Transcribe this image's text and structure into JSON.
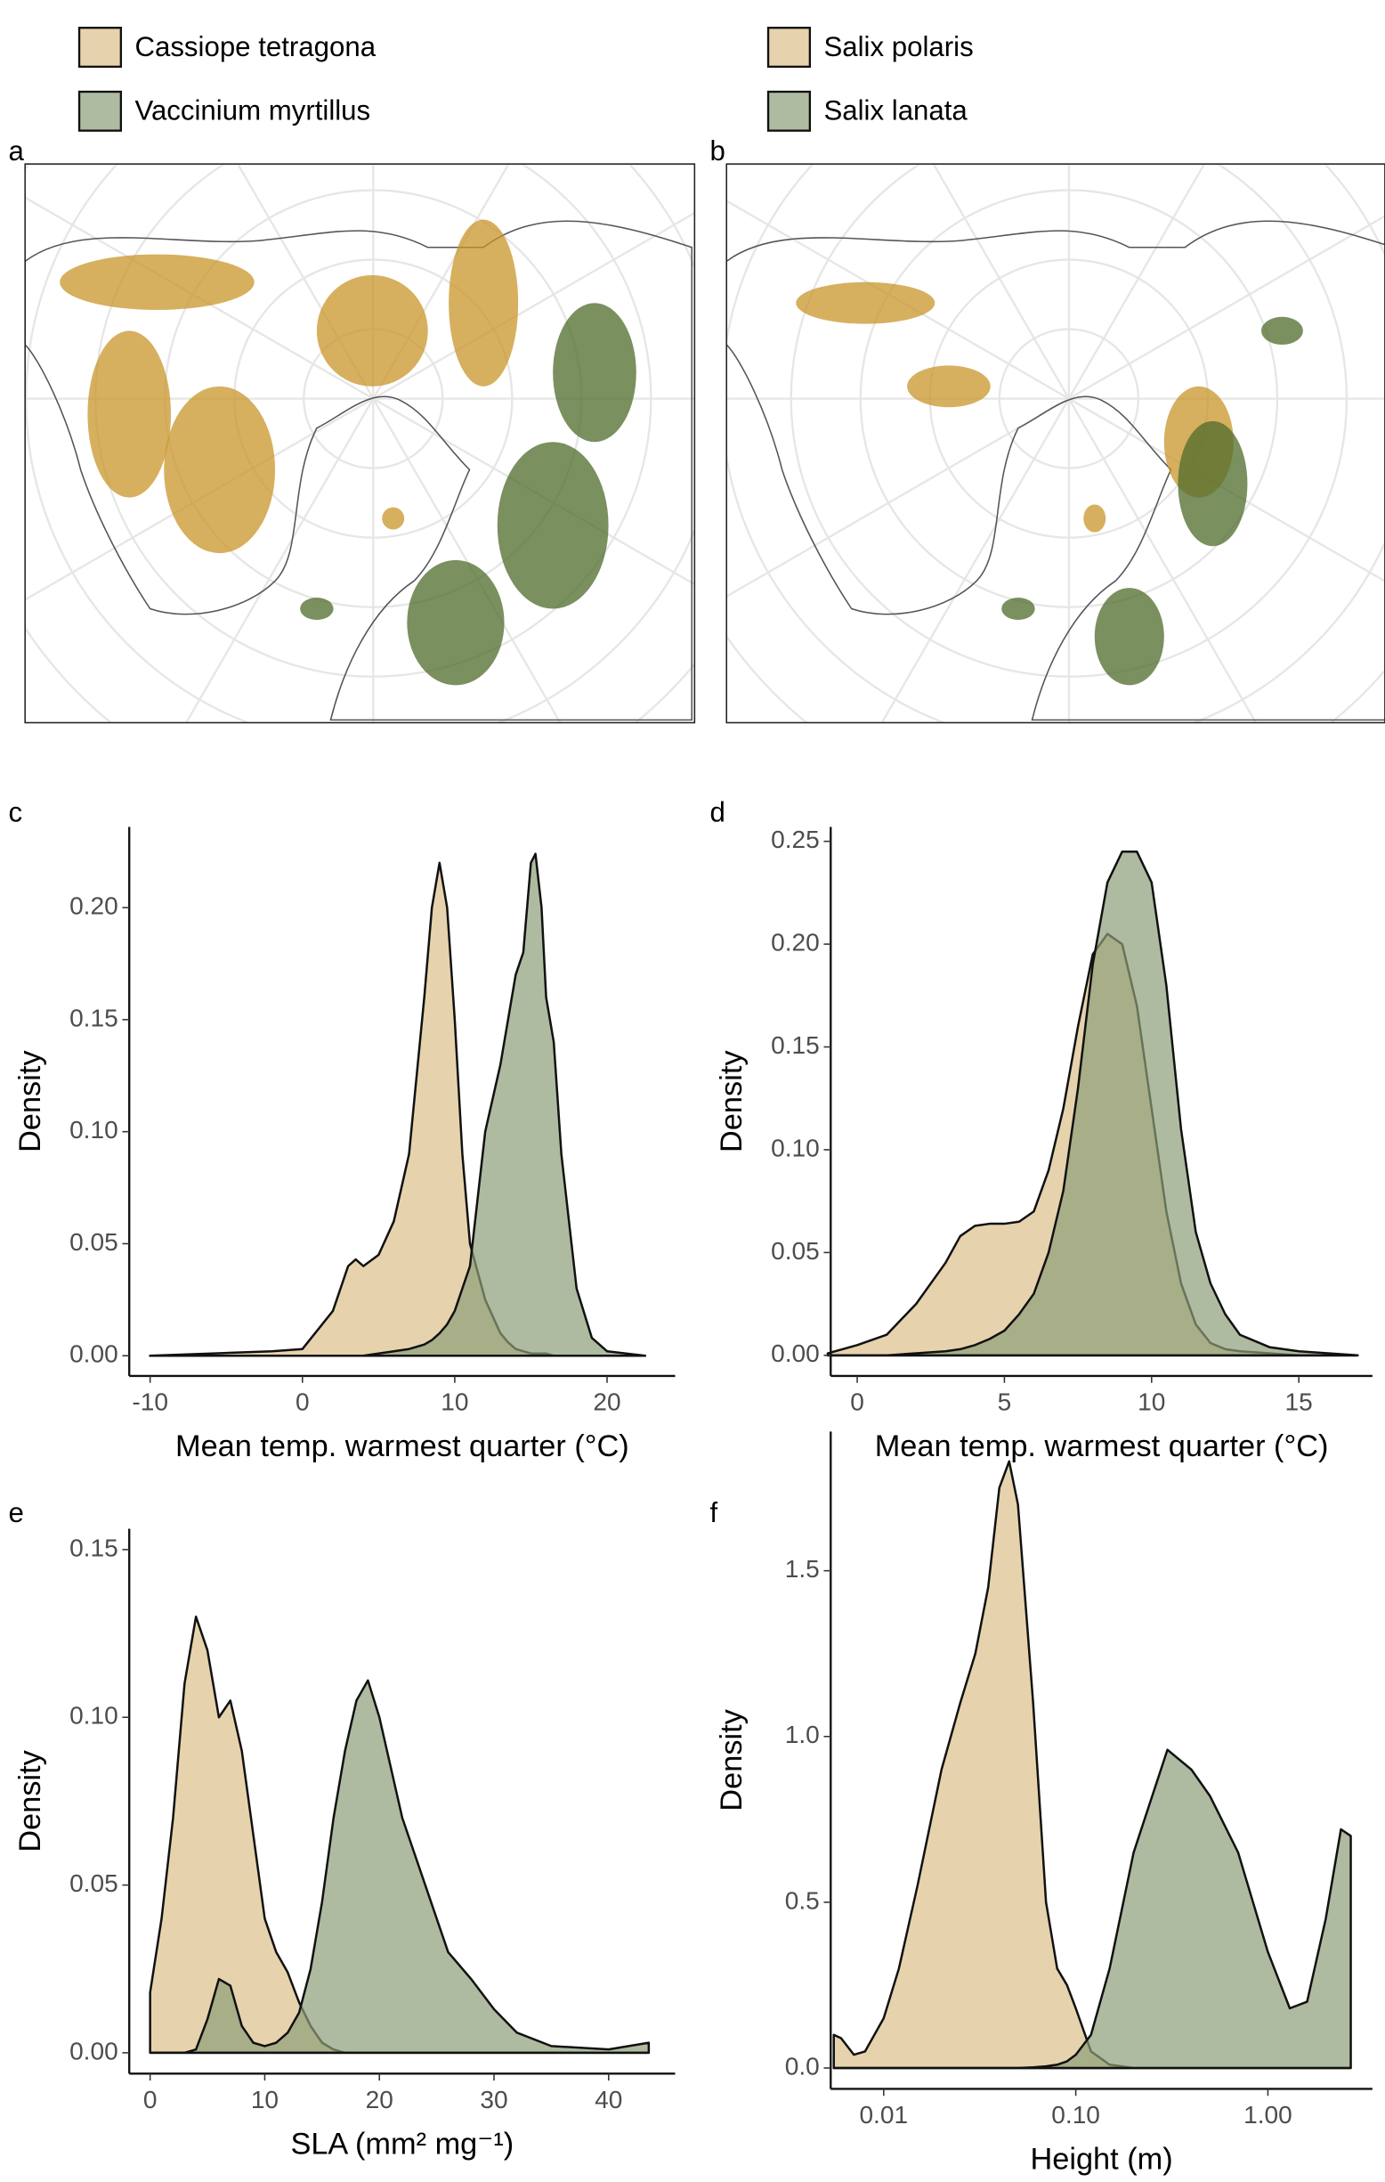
{
  "chart_data": [
    {
      "type": "map",
      "label": "a"
    },
    {
      "type": "map",
      "label": "b"
    },
    {
      "type": "density",
      "label": "c",
      "x_label": "Mean temp. warmest quarter  (°C)",
      "y_label": "Density",
      "x": [
        -10,
        -2,
        0,
        2,
        3,
        3.5,
        4,
        5,
        6,
        7,
        8,
        8.5,
        9,
        9.5,
        10,
        10.5,
        11,
        12,
        13,
        13.5,
        14,
        14.5,
        15,
        15.3,
        15.7,
        16,
        16.5,
        17,
        18,
        19,
        20,
        22.5
      ],
      "series": [
        {
          "name": "Cassiope tetragona",
          "color": "#dcc08a",
          "values": [
            0,
            0.002,
            0.003,
            0.02,
            0.04,
            0.043,
            0.04,
            0.045,
            0.06,
            0.09,
            0.16,
            0.2,
            0.22,
            0.2,
            0.15,
            0.09,
            0.05,
            0.025,
            0.01,
            0.006,
            0.003,
            0.002,
            0.001,
            0.001,
            0.001,
            0.001,
            0,
            0,
            0,
            0,
            0,
            0
          ]
        },
        {
          "name": "Vaccinium myrtillus",
          "color": "#8b9e78",
          "values": [
            0,
            0,
            0,
            0,
            0,
            0,
            0,
            0.001,
            0.002,
            0.003,
            0.005,
            0.007,
            0.01,
            0.014,
            0.02,
            0.03,
            0.04,
            0.1,
            0.13,
            0.15,
            0.17,
            0.18,
            0.22,
            0.224,
            0.2,
            0.16,
            0.14,
            0.09,
            0.03,
            0.008,
            0.002,
            0
          ]
        }
      ],
      "xlim": [
        -11.37,
        24.47
      ],
      "ylim": [
        -0.009,
        0.236
      ],
      "xticks": [
        -10,
        0,
        10,
        20
      ],
      "yticks": [
        {
          "value": 0,
          "label": "0.00"
        },
        0.05,
        {
          "value": 0.1,
          "label": "0.10"
        },
        0.15,
        {
          "value": 0.2,
          "label": "0.20"
        }
      ]
    },
    {
      "type": "density",
      "label": "d",
      "x_label": "Mean temp. warmest quarter  (°C)",
      "y_label": "Density",
      "x": [
        -1,
        0,
        1,
        2,
        3,
        3.5,
        4,
        4.5,
        5,
        5.5,
        6,
        6.5,
        7,
        7.5,
        8,
        8.5,
        9,
        9.5,
        10,
        10.5,
        11,
        11.5,
        12,
        12.5,
        13,
        14,
        15,
        17
      ],
      "series": [
        {
          "name": "Salix polaris",
          "color": "#dcc08a",
          "values": [
            0.001,
            0.005,
            0.01,
            0.025,
            0.045,
            0.058,
            0.063,
            0.064,
            0.064,
            0.065,
            0.07,
            0.09,
            0.12,
            0.16,
            0.195,
            0.205,
            0.2,
            0.17,
            0.12,
            0.07,
            0.035,
            0.015,
            0.006,
            0.003,
            0.002,
            0.001,
            0,
            0
          ]
        },
        {
          "name": "Salix lanata",
          "color": "#8b9e78",
          "values": [
            0,
            0,
            0,
            0.001,
            0.002,
            0.003,
            0.005,
            0.008,
            0.012,
            0.02,
            0.03,
            0.05,
            0.08,
            0.13,
            0.19,
            0.23,
            0.245,
            0.245,
            0.23,
            0.18,
            0.11,
            0.06,
            0.035,
            0.02,
            0.01,
            0.004,
            0.002,
            0
          ]
        }
      ],
      "xlim": [
        -0.9,
        17.5
      ],
      "ylim": [
        -0.01,
        0.257
      ],
      "xticks": [
        0,
        5,
        10,
        15
      ],
      "yticks": [
        {
          "value": 0,
          "label": "0.00"
        },
        0.05,
        {
          "value": 0.1,
          "label": "0.10"
        },
        0.15,
        {
          "value": 0.2,
          "label": "0.20"
        },
        0.25
      ]
    },
    {
      "type": "density",
      "label": "e",
      "x_label": "SLA (mm² mg⁻¹)",
      "y_label": "Density",
      "x": [
        0,
        1,
        2,
        3,
        4,
        5,
        6,
        7,
        8,
        9,
        10,
        11,
        12,
        13,
        14,
        15,
        16,
        17,
        18,
        19,
        20,
        21,
        22,
        24,
        26,
        28,
        30,
        32,
        35,
        40,
        43.5
      ],
      "series": [
        {
          "color": "#dcc08a",
          "values": [
            0.018,
            0.04,
            0.07,
            0.11,
            0.13,
            0.12,
            0.1,
            0.105,
            0.09,
            0.065,
            0.04,
            0.03,
            0.024,
            0.015,
            0.008,
            0.003,
            0.001,
            0,
            0,
            0,
            0,
            0,
            0,
            0,
            0,
            0,
            0,
            0,
            0,
            0,
            0
          ]
        },
        {
          "color": "#8b9e78",
          "values": [
            0,
            0,
            0,
            0,
            0.001,
            0.01,
            0.022,
            0.02,
            0.008,
            0.003,
            0.002,
            0.003,
            0.006,
            0.012,
            0.025,
            0.045,
            0.07,
            0.09,
            0.105,
            0.111,
            0.1,
            0.085,
            0.07,
            0.05,
            0.03,
            0.022,
            0.013,
            0.006,
            0.002,
            0.001,
            0.003
          ]
        }
      ],
      "xlim": [
        -1.82,
        45.8
      ],
      "ylim": [
        -0.0062,
        0.1562
      ],
      "xticks": [
        0,
        10,
        20,
        30,
        40
      ],
      "yticks": [
        {
          "value": 0,
          "label": "0.00"
        },
        0.05,
        {
          "value": 0.1,
          "label": "0.10"
        },
        0.15
      ]
    },
    {
      "type": "density",
      "label": "f",
      "x_label": "Height (m)",
      "y_label": "Density",
      "xscale": "log",
      "x": [
        0.0055,
        0.006,
        0.007,
        0.008,
        0.01,
        0.012,
        0.015,
        0.02,
        0.025,
        0.03,
        0.035,
        0.04,
        0.045,
        0.05,
        0.06,
        0.07,
        0.08,
        0.09,
        0.1,
        0.12,
        0.15,
        0.2,
        0.3,
        0.4,
        0.5,
        0.7,
        1,
        1.3,
        1.6,
        2,
        2.4,
        2.7
      ],
      "series": [
        {
          "color": "#dcc08a",
          "values": [
            0.1,
            0.09,
            0.04,
            0.05,
            0.15,
            0.3,
            0.55,
            0.9,
            1.1,
            1.25,
            1.45,
            1.75,
            1.83,
            1.7,
            1.1,
            0.5,
            0.3,
            0.25,
            0.18,
            0.05,
            0.01,
            0,
            0,
            0,
            0,
            0,
            0,
            0,
            0,
            0,
            0,
            0
          ]
        },
        {
          "color": "#8b9e78",
          "values": [
            0,
            0,
            0,
            0,
            0,
            0,
            0,
            0,
            0,
            0,
            0,
            0,
            0,
            0,
            0.002,
            0.005,
            0.01,
            0.02,
            0.04,
            0.1,
            0.3,
            0.65,
            0.96,
            0.9,
            0.82,
            0.65,
            0.35,
            0.18,
            0.2,
            0.45,
            0.72,
            0.7
          ]
        }
      ],
      "xlim": [
        0.0053,
        3.5
      ],
      "ylim": [
        -0.063,
        1.92
      ],
      "xticks": [
        0.01,
        {
          "value": 0.1,
          "label": "0.10"
        },
        {
          "value": 1,
          "label": "1.00"
        }
      ],
      "yticks": [
        {
          "value": 0,
          "label": "0.0"
        },
        0.5,
        {
          "value": 1,
          "label": "1.0"
        },
        1.5
      ]
    }
  ]
}
